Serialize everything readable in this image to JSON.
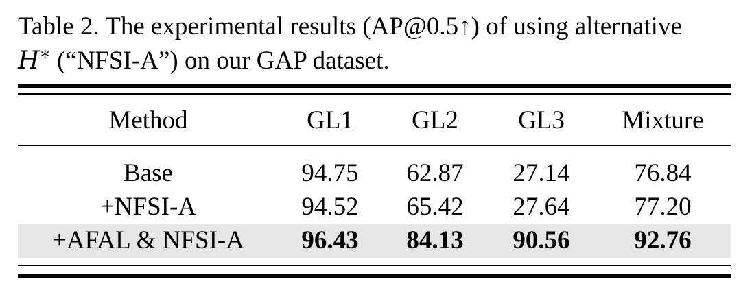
{
  "caption": {
    "line1": "Table 2. The experimental results (AP@0.5↑) of using alternative",
    "symbol": "H",
    "symbol_sup": "∗",
    "line2_rest": " (“NFSI-A”) on our GAP dataset."
  },
  "table": {
    "headers": [
      "Method",
      "GL1",
      "GL2",
      "GL3",
      "Mixture"
    ],
    "rows": [
      {
        "cells": [
          "Base",
          "94.75",
          "62.87",
          "27.14",
          "76.84"
        ]
      },
      {
        "cells": [
          "+NFSI-A",
          "94.52",
          "65.42",
          "27.64",
          "77.20"
        ]
      },
      {
        "cells": [
          "+AFAL & NFSI-A",
          "96.43",
          "84.13",
          "90.56",
          "92.76"
        ]
      }
    ]
  },
  "colors": {
    "highlight_row": "#e6e6e6",
    "text": "#000000"
  }
}
